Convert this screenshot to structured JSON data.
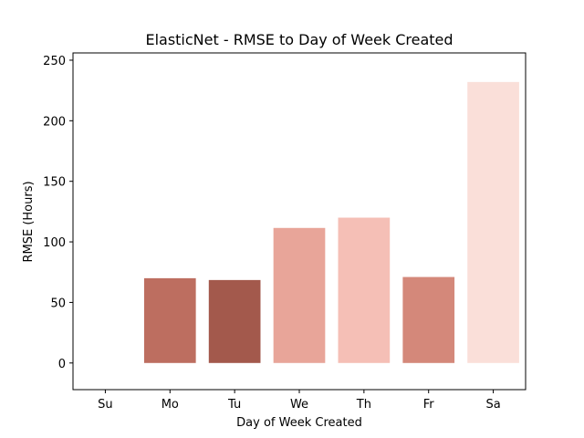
{
  "chart_data": {
    "type": "bar",
    "title": "ElasticNet - RMSE to Day of Week Created",
    "xlabel": "Day of Week Created",
    "ylabel": "RMSE (Hours)",
    "categories": [
      "Su",
      "Mo",
      "Tu",
      "We",
      "Th",
      "Fr",
      "Sa"
    ],
    "values": [
      0,
      70,
      68.5,
      111.5,
      120,
      71,
      232
    ],
    "ylim": [
      -22,
      256
    ],
    "yticks": [
      0,
      50,
      100,
      150,
      200,
      250
    ],
    "ytick_labels": [
      "0",
      "50",
      "100",
      "150",
      "200",
      "250"
    ],
    "bar_colors": [
      "#ffffff",
      "#bd6e60",
      "#a3594c",
      "#e8a599",
      "#f5bfb6",
      "#d4887a",
      "#fadfd9"
    ],
    "grid": false,
    "legend": "none"
  }
}
